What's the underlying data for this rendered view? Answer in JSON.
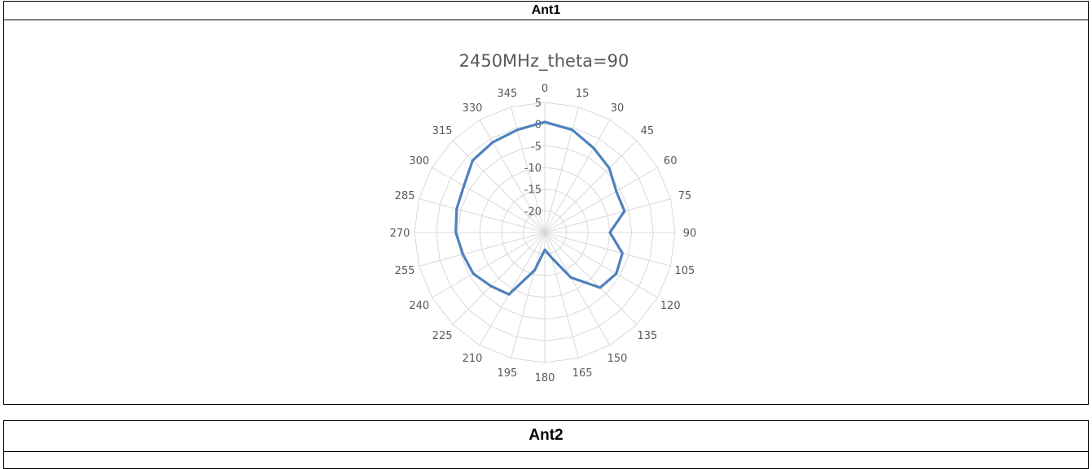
{
  "panels": [
    {
      "title": "Ant1"
    },
    {
      "title": "Ant2"
    }
  ],
  "colors": {
    "series": "#4f81bd",
    "grid": "#d9d9d9",
    "text": "#595959"
  },
  "chart_data": {
    "type": "radar",
    "title": "2450MHz_theta=90",
    "r_ticks": [
      5,
      0,
      -5,
      -10,
      -15,
      -20
    ],
    "rlim": [
      -25,
      5
    ],
    "angles": [
      0,
      15,
      30,
      45,
      60,
      75,
      90,
      105,
      120,
      135,
      150,
      165,
      180,
      195,
      210,
      225,
      240,
      255,
      270,
      285,
      300,
      315,
      330,
      345
    ],
    "series": [
      {
        "values": [
          0.5,
          -0.5,
          -2.5,
          -4,
          -6,
          -6,
          -10,
          -6.5,
          -6,
          -7,
          -13,
          -19,
          -21,
          -16,
          -8.5,
          -7.5,
          -6,
          -5.5,
          -4.5,
          -4,
          -3.5,
          -1.5,
          -1,
          -0.5
        ]
      }
    ]
  }
}
